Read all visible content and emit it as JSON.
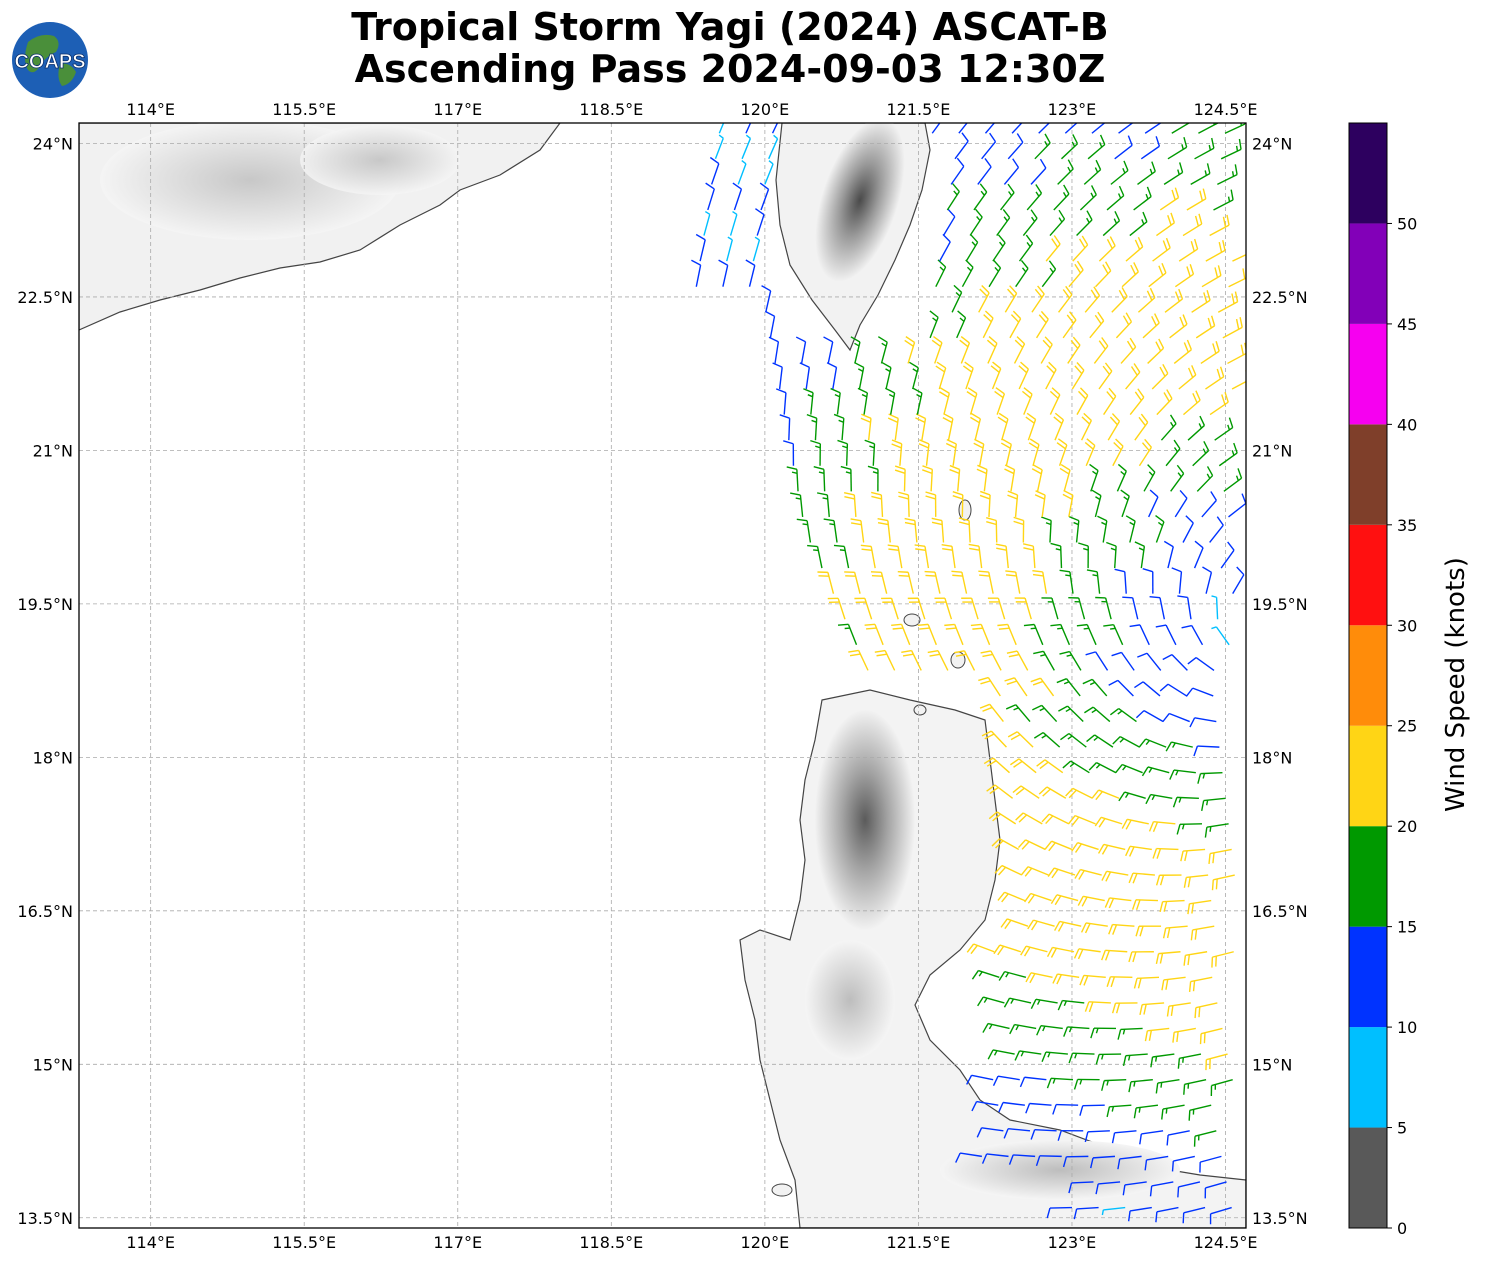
{
  "title": {
    "line1": "Tropical Storm Yagi (2024) ASCAT-B",
    "line2": "Ascending Pass 2024-09-03 12:30Z"
  },
  "logo": {
    "text": "COAPS",
    "icon": "globe-logo-icon"
  },
  "map": {
    "lon_ticks": [
      "114°E",
      "115.5°E",
      "117°E",
      "118.5°E",
      "120°E",
      "121.5°E",
      "123°E",
      "124.5°E"
    ],
    "lat_ticks": [
      "24°N",
      "22.5°N",
      "21°N",
      "19.5°N",
      "18°N",
      "16.5°N",
      "15°N",
      "13.5°N"
    ],
    "lon_values": [
      114,
      115.5,
      117,
      118.5,
      120,
      121.5,
      123,
      124.5
    ],
    "lat_values": [
      24,
      22.5,
      21,
      19.5,
      18,
      16.5,
      15,
      13.5
    ],
    "lon_range": [
      113.3,
      124.7
    ],
    "lat_range": [
      13.4,
      24.2
    ],
    "grid": true
  },
  "colorbar": {
    "label": "Wind Speed (knots)",
    "ticks": [
      "0",
      "5",
      "10",
      "15",
      "20",
      "25",
      "30",
      "35",
      "40",
      "45",
      "50"
    ],
    "bins": [
      {
        "min": 0,
        "max": 5,
        "color": "#595959"
      },
      {
        "min": 5,
        "max": 10,
        "color": "#00bfff"
      },
      {
        "min": 10,
        "max": 15,
        "color": "#0033ff"
      },
      {
        "min": 15,
        "max": 20,
        "color": "#009900"
      },
      {
        "min": 20,
        "max": 25,
        "color": "#ffd515"
      },
      {
        "min": 25,
        "max": 30,
        "color": "#ff8c0a"
      },
      {
        "min": 30,
        "max": 35,
        "color": "#ff1010"
      },
      {
        "min": 35,
        "max": 40,
        "color": "#7f3f2a"
      },
      {
        "min": 40,
        "max": 45,
        "color": "#f600f0"
      },
      {
        "min": 45,
        "max": 50,
        "color": "#8200b8"
      },
      {
        "min": 50,
        "max": 55,
        "color": "#2d005f"
      }
    ]
  }
}
